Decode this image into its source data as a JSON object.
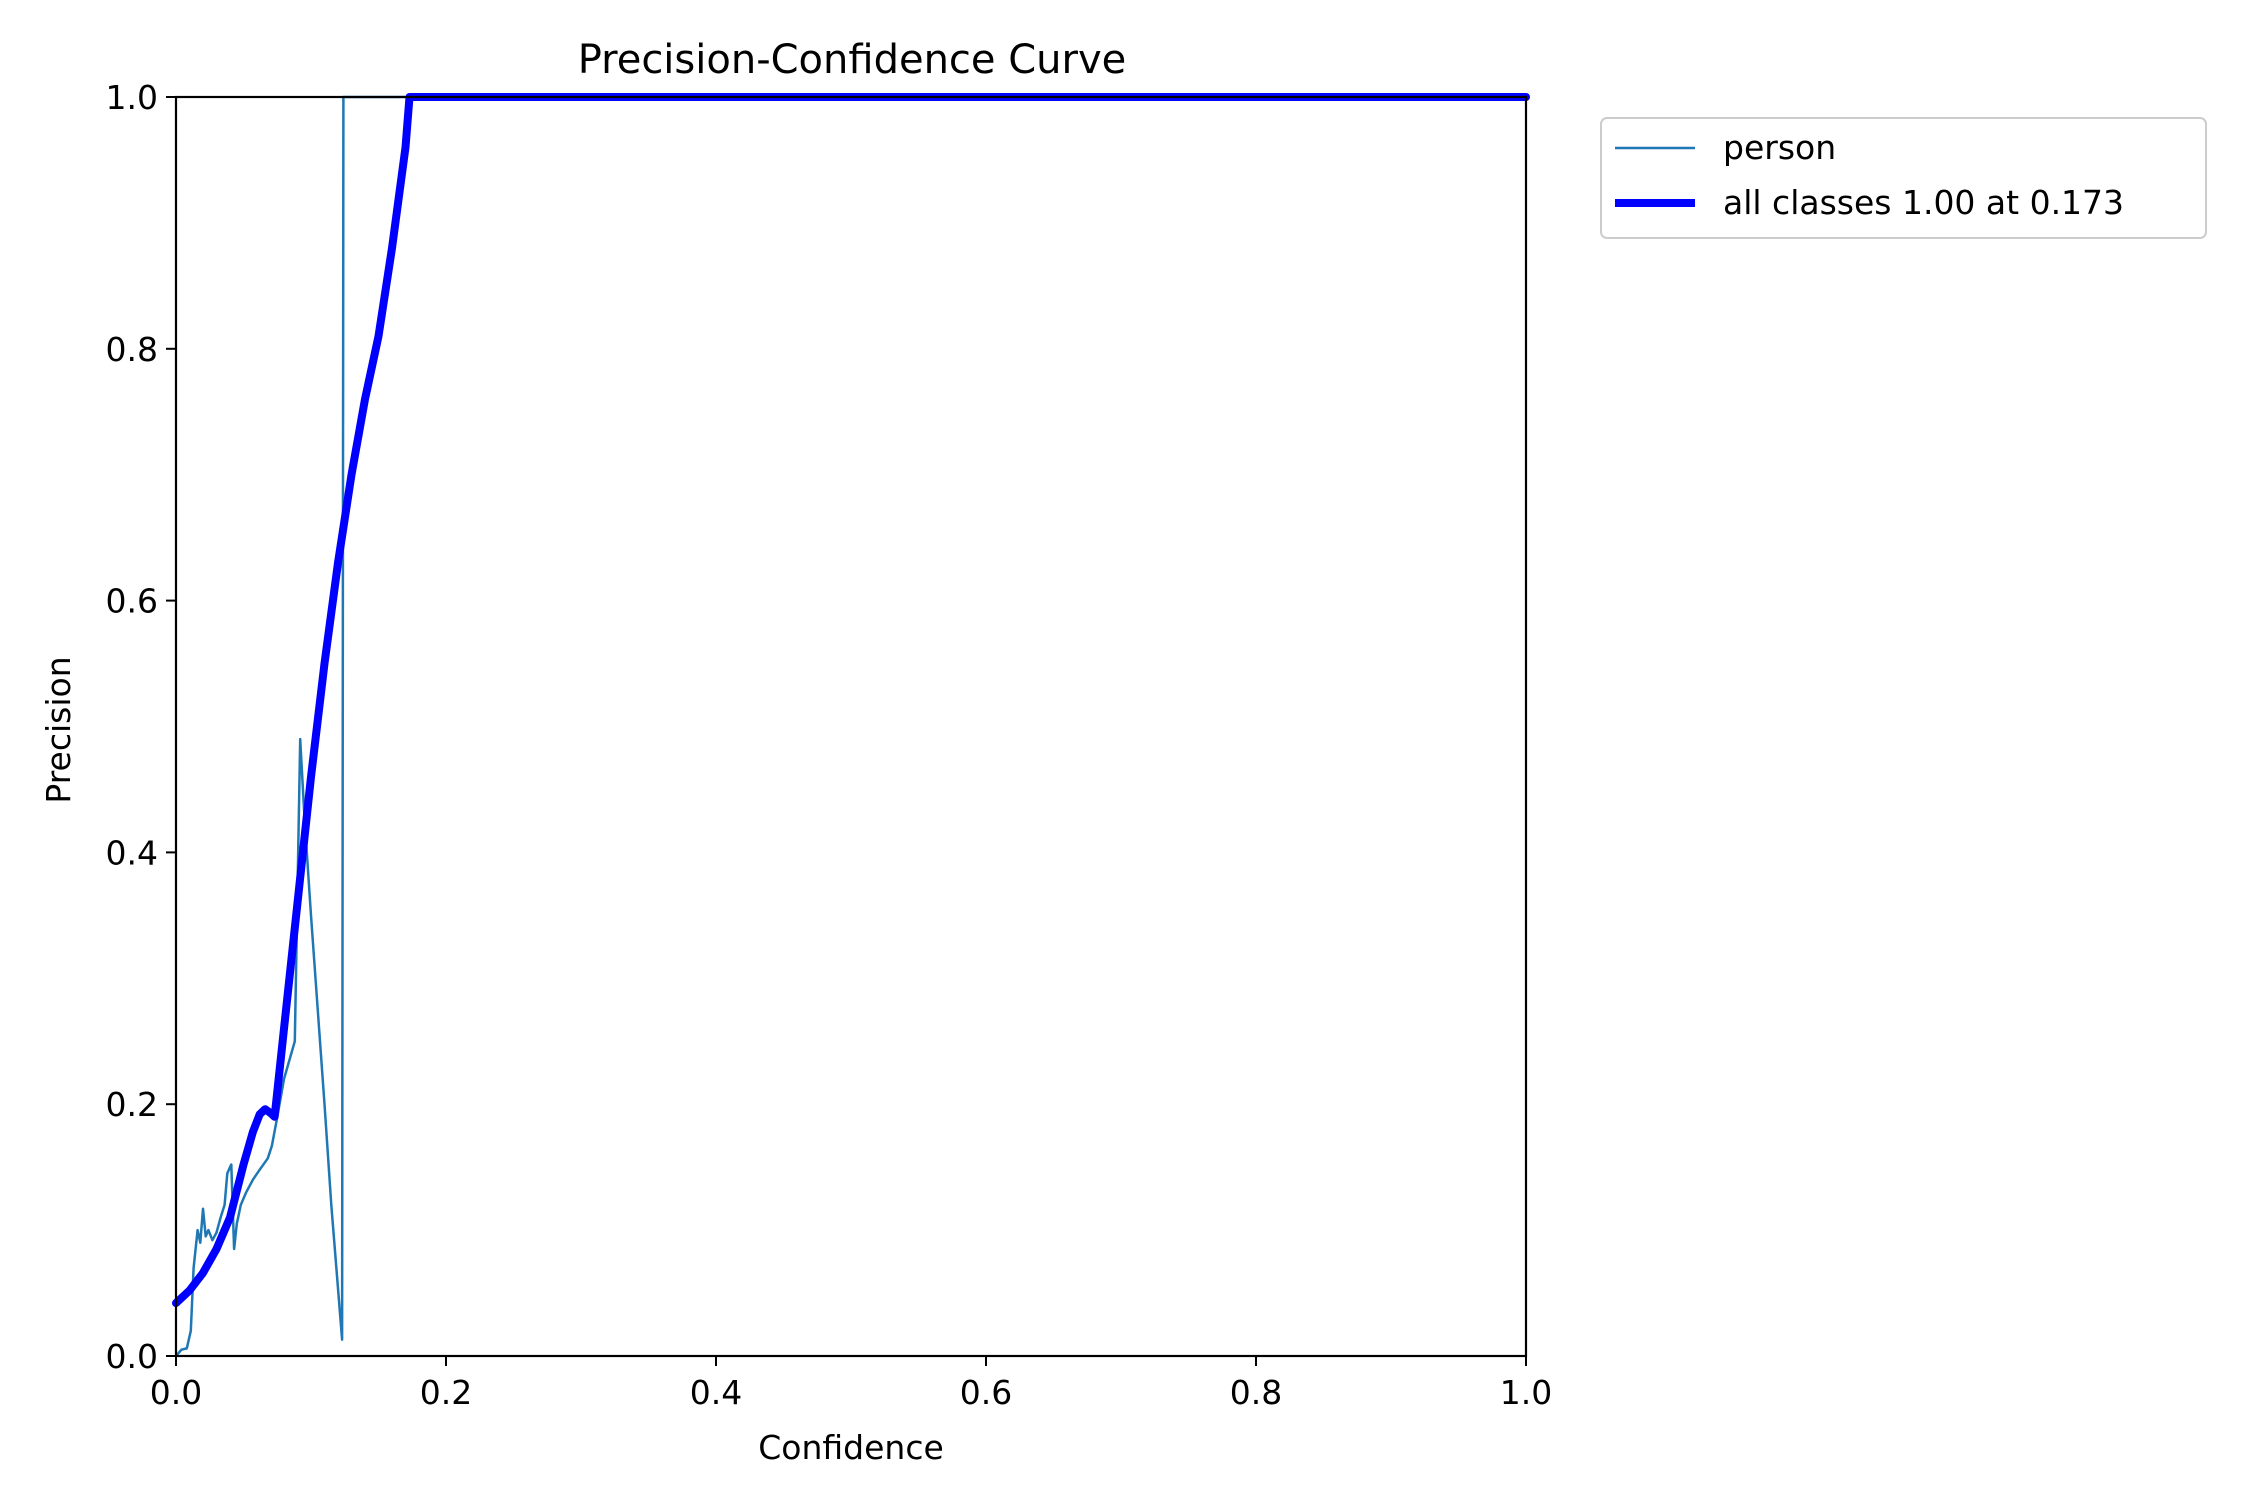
{
  "chart_data": {
    "type": "line",
    "title": "Precision-Confidence Curve",
    "xlabel": "Confidence",
    "ylabel": "Precision",
    "xlim": [
      0,
      1
    ],
    "ylim": [
      0,
      1
    ],
    "xticks": [
      "0.0",
      "0.2",
      "0.4",
      "0.6",
      "0.8",
      "1.0"
    ],
    "yticks": [
      "0.0",
      "0.2",
      "0.4",
      "0.6",
      "0.8",
      "1.0"
    ],
    "grid": false,
    "legend_position": "outside-top-right",
    "series": [
      {
        "name": "person",
        "color": "#1f77b4",
        "points": [
          [
            0.0,
            0.0
          ],
          [
            0.004,
            0.005
          ],
          [
            0.008,
            0.006
          ],
          [
            0.011,
            0.02
          ],
          [
            0.013,
            0.07
          ],
          [
            0.016,
            0.1
          ],
          [
            0.018,
            0.09
          ],
          [
            0.02,
            0.117
          ],
          [
            0.022,
            0.095
          ],
          [
            0.024,
            0.1
          ],
          [
            0.027,
            0.092
          ],
          [
            0.03,
            0.098
          ],
          [
            0.033,
            0.11
          ],
          [
            0.036,
            0.12
          ],
          [
            0.038,
            0.145
          ],
          [
            0.04,
            0.15
          ],
          [
            0.041,
            0.152
          ],
          [
            0.043,
            0.085
          ],
          [
            0.045,
            0.105
          ],
          [
            0.048,
            0.12
          ],
          [
            0.052,
            0.13
          ],
          [
            0.057,
            0.14
          ],
          [
            0.062,
            0.148
          ],
          [
            0.068,
            0.157
          ],
          [
            0.071,
            0.167
          ],
          [
            0.075,
            0.19
          ],
          [
            0.08,
            0.22
          ],
          [
            0.088,
            0.25
          ],
          [
            0.092,
            0.49
          ],
          [
            0.095,
            0.43
          ],
          [
            0.1,
            0.35
          ],
          [
            0.11,
            0.2
          ],
          [
            0.115,
            0.12
          ],
          [
            0.123,
            0.013
          ],
          [
            0.124,
            1.0
          ],
          [
            0.13,
            1.0
          ],
          [
            1.0,
            1.0
          ]
        ]
      },
      {
        "name": "all classes 1.00 at 0.173",
        "color": "#0000ff",
        "points": [
          [
            0.0,
            0.042
          ],
          [
            0.01,
            0.052
          ],
          [
            0.02,
            0.066
          ],
          [
            0.03,
            0.085
          ],
          [
            0.04,
            0.11
          ],
          [
            0.05,
            0.152
          ],
          [
            0.057,
            0.178
          ],
          [
            0.062,
            0.192
          ],
          [
            0.066,
            0.196
          ],
          [
            0.07,
            0.193
          ],
          [
            0.073,
            0.19
          ],
          [
            0.08,
            0.26
          ],
          [
            0.09,
            0.36
          ],
          [
            0.1,
            0.46
          ],
          [
            0.11,
            0.55
          ],
          [
            0.12,
            0.63
          ],
          [
            0.13,
            0.7
          ],
          [
            0.14,
            0.76
          ],
          [
            0.15,
            0.81
          ],
          [
            0.16,
            0.88
          ],
          [
            0.17,
            0.96
          ],
          [
            0.173,
            1.0
          ],
          [
            0.2,
            1.0
          ],
          [
            1.0,
            1.0
          ]
        ]
      }
    ]
  }
}
